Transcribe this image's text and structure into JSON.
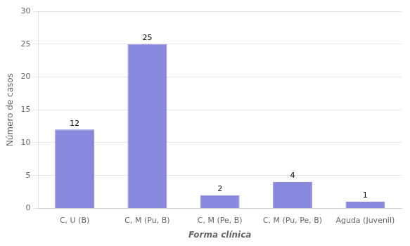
{
  "chart_data": {
    "type": "bar",
    "categories": [
      "C, U (B)",
      "C, M (Pu, B)",
      "C, M (Pe, B)",
      "C, M (Pu, Pe, B)",
      "Aguda (Juvenil)"
    ],
    "values": [
      12,
      25,
      2,
      4,
      1
    ],
    "color": "#8888dd",
    "xlabel": "Forma clínica",
    "ylabel": "Número de casos",
    "ylim": [
      0,
      30
    ],
    "yticks": [
      0,
      5,
      10,
      15,
      20,
      25,
      30
    ],
    "grid": true,
    "data_labels": true
  }
}
